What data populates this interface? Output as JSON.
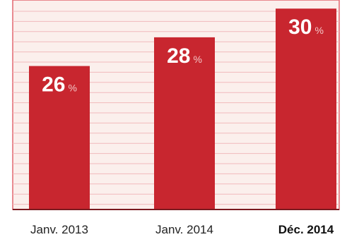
{
  "colors": {
    "bar": "#c8262f",
    "panel_background": "#fbefec",
    "gridline": "#f1b9bb",
    "frame": "#e2676f",
    "axis": "#7a1a1f"
  },
  "chart_data": {
    "type": "bar",
    "categories": [
      "Janv. 2013",
      "Janv. 2014",
      "Déc. 2014"
    ],
    "values": [
      26,
      28,
      30
    ],
    "value_unit": "%",
    "emphasized_category": "Déc. 2014",
    "ylim": [
      16,
      30.6
    ],
    "grid": true,
    "legend": "none"
  }
}
